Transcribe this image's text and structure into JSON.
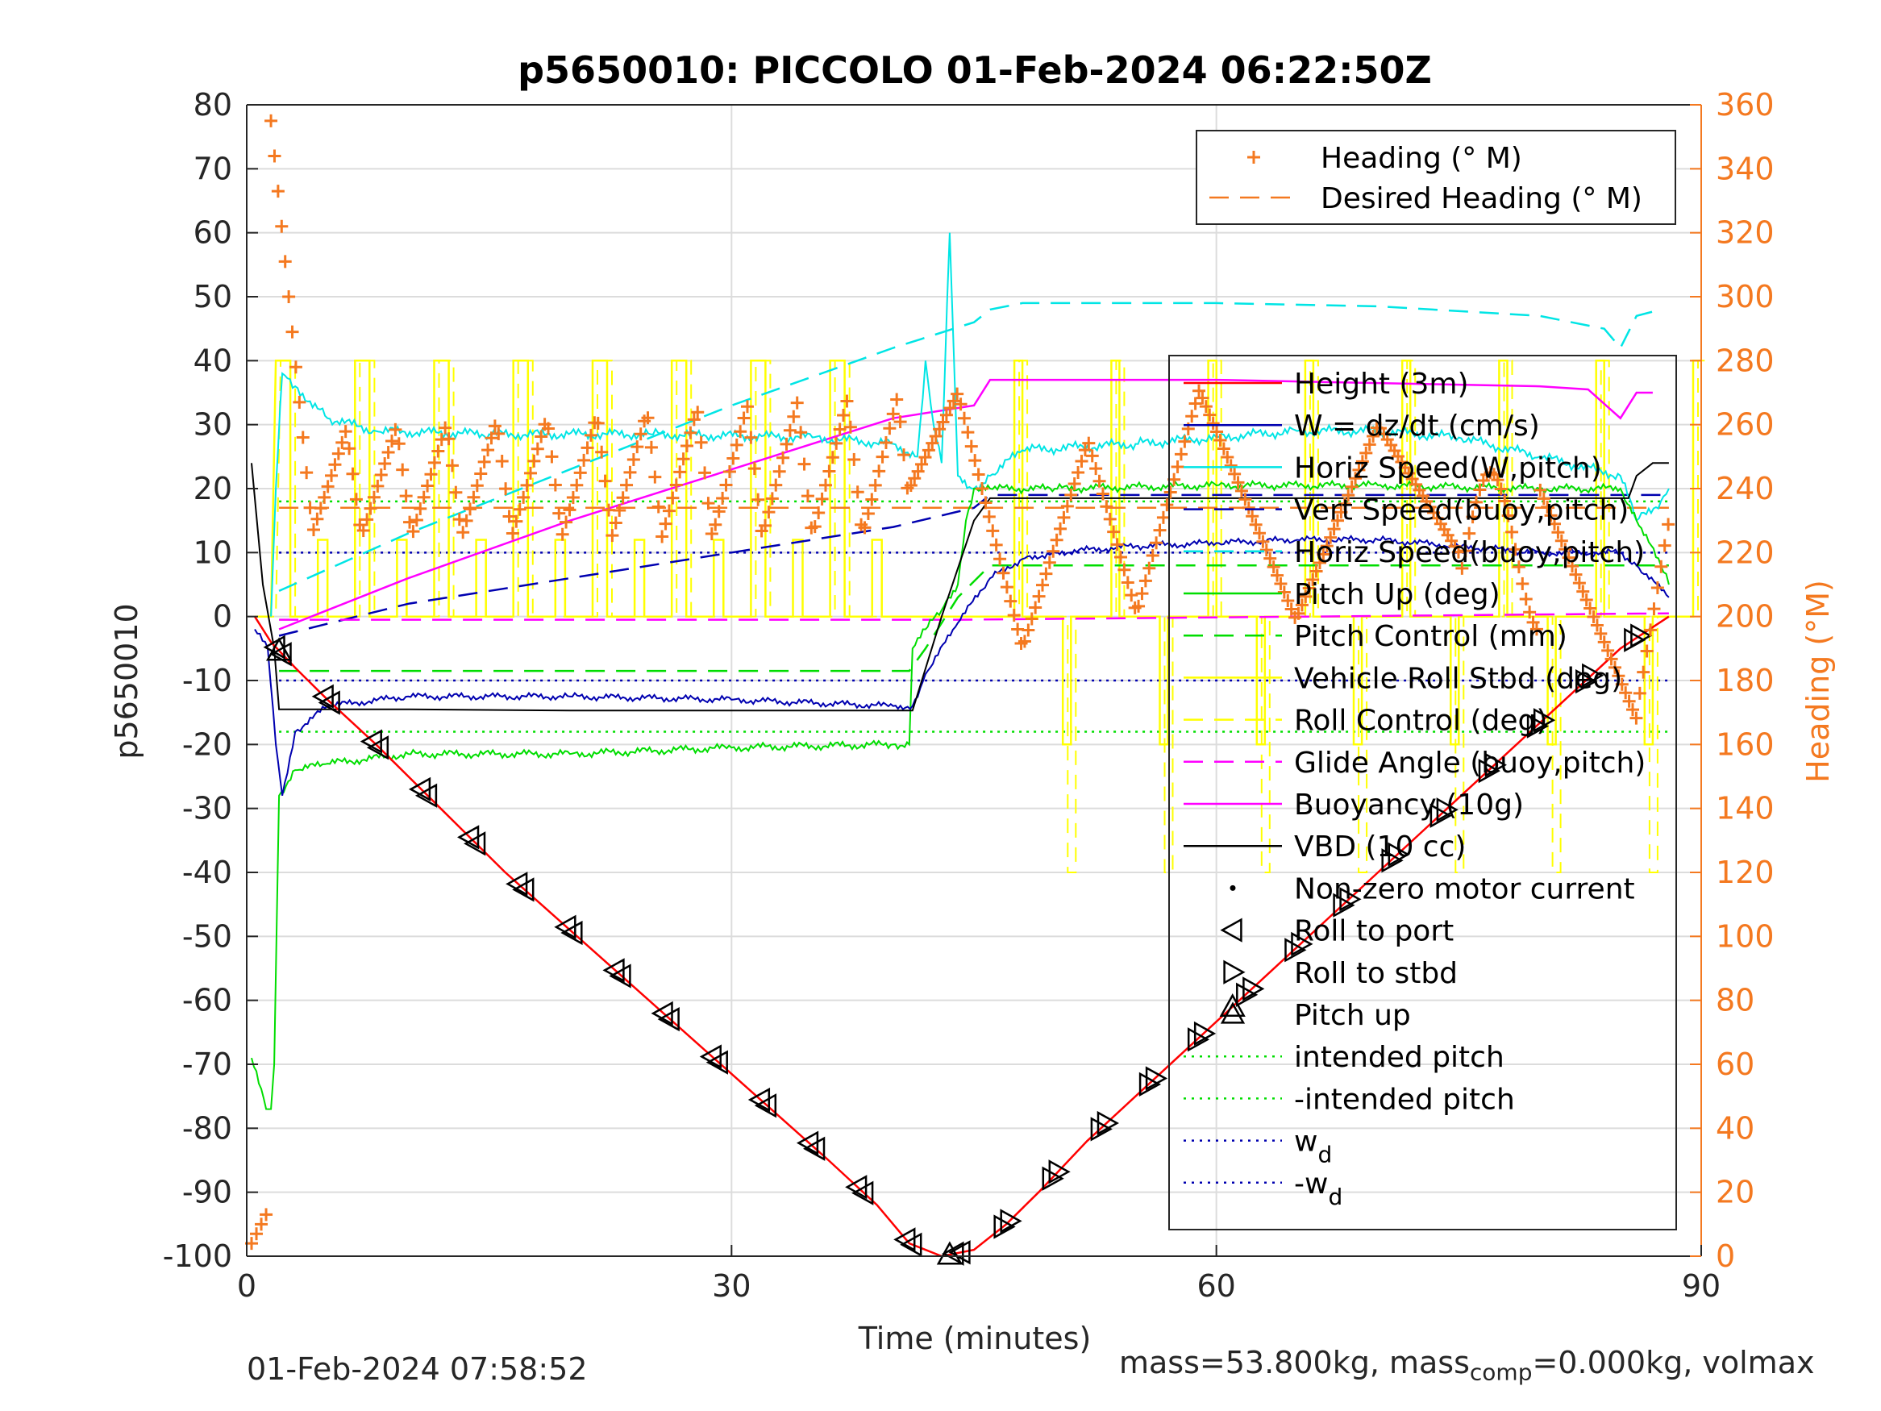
{
  "chart_data": {
    "type": "line",
    "title": "p5650010: PICCOLO 01-Feb-2024 06:22:50Z",
    "xlabel": "Time (minutes)",
    "ylabel": "p5650010",
    "y2label": "Heading (°M)",
    "xlim": [
      0,
      90
    ],
    "ylim": [
      -100,
      80
    ],
    "y2lim": [
      0,
      360
    ],
    "xticks": [
      "0",
      "30",
      "60",
      "90"
    ],
    "yticks": [
      "80",
      "70",
      "60",
      "50",
      "40",
      "30",
      "20",
      "10",
      "0",
      "-10",
      "-20",
      "-30",
      "-40",
      "-50",
      "-60",
      "-70",
      "-80",
      "-90",
      "-100"
    ],
    "y2ticks": [
      "360",
      "340",
      "320",
      "300",
      "280",
      "260",
      "240",
      "220",
      "200",
      "180",
      "160",
      "140",
      "120",
      "100",
      "80",
      "60",
      "40",
      "20",
      "0"
    ],
    "grid": true,
    "colors": {
      "heading": "#f47920",
      "depth": "#ff0000",
      "w": "#0000b0",
      "horiz_speed": "#00e5e5",
      "pitch": "#00dd00",
      "roll": "#ffff00",
      "glide": "#ff00ff",
      "vbd": "#000000"
    },
    "legend_top": [
      {
        "label": "Heading (° M)",
        "style": "marker-plus",
        "color": "#f47920"
      },
      {
        "label": "Desired Heading (° M)",
        "style": "dash",
        "color": "#f47920"
      }
    ],
    "legend_main": [
      {
        "label": "Height (3m)",
        "style": "solid",
        "color": "#ff0000"
      },
      {
        "label": "W = dz/dt (cm/s)",
        "style": "solid",
        "color": "#0000b0"
      },
      {
        "label": "Horiz Speed(W,pitch)",
        "style": "solid",
        "color": "#00e5e5"
      },
      {
        "label": "Vert Speed(buoy,pitch)",
        "style": "dash",
        "color": "#0000b0"
      },
      {
        "label": "Horiz Speed(buoy,pitch)",
        "style": "dash",
        "color": "#00e5e5"
      },
      {
        "label": "Pitch Up (deg)",
        "style": "solid",
        "color": "#00dd00"
      },
      {
        "label": "Pitch Control (mm)",
        "style": "dash",
        "color": "#00dd00"
      },
      {
        "label": "Vehicle Roll Stbd (deg)",
        "style": "solid",
        "color": "#ffff00"
      },
      {
        "label": "Roll Control (deg)",
        "style": "dash",
        "color": "#ffff00"
      },
      {
        "label": "Glide Angle (buoy,pitch)",
        "style": "dash",
        "color": "#ff00ff"
      },
      {
        "label": "Buoyancy (10g)",
        "style": "solid",
        "color": "#ff00ff"
      },
      {
        "label": "VBD (10 cc)",
        "style": "solid",
        "color": "#000000"
      },
      {
        "label": "Non-zero motor current",
        "style": "dot-marker",
        "color": "#000000"
      },
      {
        "label": "Roll to port",
        "style": "tri-left",
        "color": "#000000"
      },
      {
        "label": "Roll to stbd",
        "style": "tri-right",
        "color": "#000000"
      },
      {
        "label": "Pitch up",
        "style": "tri-up",
        "color": "#000000"
      },
      {
        "label": "intended pitch",
        "style": "dotted",
        "color": "#00dd00"
      },
      {
        "label": "-intended pitch",
        "style": "dotted",
        "color": "#00dd00"
      },
      {
        "label": "w",
        "sub": "d",
        "style": "dotted",
        "color": "#0000b0"
      },
      {
        "label": "-w",
        "sub": "d",
        "style": "dotted",
        "color": "#0000b0"
      }
    ],
    "series": {
      "depth": {
        "x": [
          0.5,
          1.5,
          3,
          5,
          8,
          12,
          16,
          20,
          24,
          28,
          32,
          36,
          39,
          41,
          43,
          45,
          47,
          49,
          52,
          55,
          58,
          61,
          64,
          67,
          70,
          73,
          76,
          79,
          82,
          85,
          88
        ],
        "y": [
          0,
          -4,
          -8,
          -13,
          -20,
          -30,
          -40,
          -49,
          -58,
          -67,
          -76,
          -85,
          -92,
          -98,
          -100,
          -99,
          -95,
          -90,
          -82,
          -75,
          -68,
          -61,
          -54,
          -47,
          -40,
          -33,
          -26,
          -19,
          -12,
          -5,
          0
        ]
      },
      "vbd": {
        "x": [
          0.3,
          1.0,
          1.7,
          2.0,
          5,
          10,
          20,
          30,
          40,
          41.2,
          43,
          45,
          46,
          50,
          60,
          70,
          80,
          85.5,
          86,
          87,
          88
        ],
        "y": [
          24,
          5,
          -5,
          -14.5,
          -14.5,
          -14.5,
          -14.7,
          -14.7,
          -14.7,
          -14.7,
          0,
          15,
          18.5,
          18.5,
          18.5,
          18.5,
          18.5,
          18.5,
          22,
          24,
          24
        ]
      },
      "w": {
        "x": [
          0.5,
          1.3,
          1.8,
          2.2,
          3,
          5,
          10,
          20,
          30,
          40,
          41.2,
          42,
          44,
          46,
          48,
          50,
          55,
          60,
          65,
          70,
          75,
          80,
          85,
          86,
          88
        ],
        "y": [
          -2,
          -5,
          -20,
          -28,
          -18,
          -14,
          -12.5,
          -12.5,
          -13,
          -14,
          -14,
          -9,
          -1,
          6,
          9,
          10,
          11,
          11.5,
          12,
          12,
          11,
          10,
          10,
          8,
          3
        ]
      },
      "horiz_speed": {
        "x": [
          1.5,
          1.8,
          2.2,
          3,
          5,
          8,
          15,
          25,
          35,
          40,
          41.5,
          42,
          42.5,
          43,
          43.5,
          44,
          45,
          46,
          48,
          55,
          60,
          65,
          70,
          75,
          80,
          85,
          86,
          87.5,
          88
        ],
        "y": [
          0,
          20,
          38,
          36,
          31,
          29,
          28.5,
          28.5,
          28,
          27,
          25,
          40,
          30,
          24,
          60,
          22,
          20,
          22,
          26,
          27,
          28,
          29,
          29,
          28,
          25,
          22,
          15,
          18,
          20
        ]
      },
      "vert_speed_buoy": {
        "x": [
          2,
          10,
          20,
          30,
          40,
          45,
          46,
          88
        ],
        "y": [
          -3,
          2,
          6,
          10,
          14,
          17,
          19,
          19
        ]
      },
      "horiz_speed_buoy": {
        "x": [
          2,
          10,
          20,
          30,
          40,
          45,
          46,
          48,
          50,
          60,
          70,
          80,
          84,
          85,
          86,
          87.5
        ],
        "y": [
          4,
          13,
          23,
          33,
          42,
          46,
          48,
          49,
          49,
          49,
          48.5,
          47,
          45,
          42,
          47,
          48
        ]
      },
      "pitch": {
        "x": [
          0.3,
          1.2,
          1.5,
          1.7,
          2,
          3,
          5,
          10,
          20,
          30,
          40,
          41,
          41.2,
          42,
          43,
          44,
          44.5,
          45,
          46,
          50,
          60,
          70,
          80,
          85,
          86,
          87.5,
          88
        ],
        "y": [
          -69,
          -77,
          -77,
          -70,
          -28,
          -24,
          -23,
          -21.5,
          -21.5,
          -20.5,
          -20,
          -20,
          -5,
          -2,
          1,
          5,
          15,
          20,
          20,
          20,
          20.5,
          20.5,
          20,
          20,
          15,
          8,
          5
        ]
      },
      "pitch_control": {
        "x": [
          2,
          41,
          42,
          44,
          46,
          88
        ],
        "y": [
          -8.5,
          -8.5,
          -5,
          3,
          8,
          8
        ]
      },
      "glide": {
        "x": [
          2,
          44,
          88
        ],
        "y": [
          -0.5,
          -0.5,
          0.5
        ]
      },
      "buoyancy": {
        "x": [
          2,
          10,
          20,
          30,
          40,
          45,
          46,
          50,
          60,
          70,
          80,
          83,
          85,
          86,
          87
        ],
        "y": [
          -2,
          6,
          15,
          23,
          31,
          33,
          37,
          37,
          37,
          36.5,
          36,
          35.5,
          31,
          35,
          35
        ]
      },
      "heading_desired": {
        "x": [
          2,
          88
        ],
        "y": [
          234,
          234
        ]
      },
      "roll_vehicle_levels": {
        "high": 40,
        "low": 0,
        "hold": 12,
        "switch_period_min": 3.2
      },
      "reference_lines": {
        "intended_pitch": 18,
        "minus_intended_pitch": -18,
        "w_d": 10,
        "minus_w_d": -10
      }
    }
  },
  "footer": {
    "timestamp": "01-Feb-2024 07:58:52",
    "mass_text": "mass=53.800kg, mass",
    "mass_sub": "comp",
    "mass_tail": "=0.000kg, volmax"
  }
}
